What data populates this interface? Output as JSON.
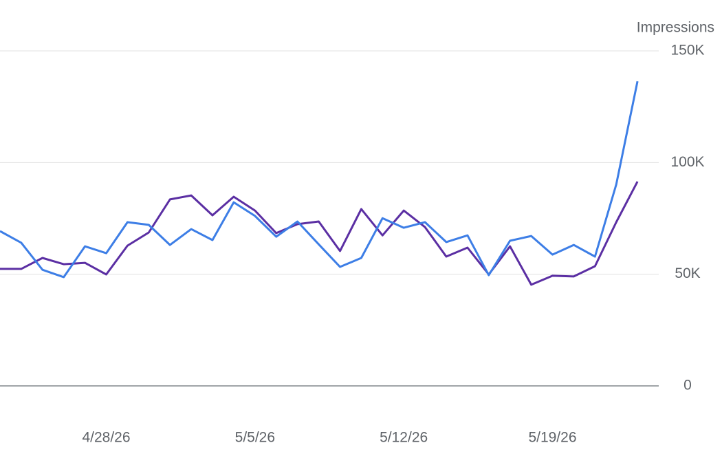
{
  "chart_data": {
    "type": "line",
    "y_axis_label": "Impressions",
    "x": [
      "4/23/26",
      "4/24/26",
      "4/25/26",
      "4/26/26",
      "4/27/26",
      "4/28/26",
      "4/29/26",
      "4/30/26",
      "5/1/26",
      "5/2/26",
      "5/3/26",
      "5/4/26",
      "5/5/26",
      "5/6/26",
      "5/7/26",
      "5/8/26",
      "5/9/26",
      "5/10/26",
      "5/11/26",
      "5/12/26",
      "5/13/26",
      "5/14/26",
      "5/15/26",
      "5/16/26",
      "5/17/26",
      "5/18/26",
      "5/19/26",
      "5/20/26",
      "5/21/26",
      "5/22/26",
      "5/23/26"
    ],
    "xlim": [
      "4/23/26",
      "5/24/26"
    ],
    "xticks": [
      "4/28/26",
      "5/5/26",
      "5/12/26",
      "5/19/26"
    ],
    "ylim": [
      0,
      150000
    ],
    "yticks": [
      0,
      {
        "value": 50000,
        "label": "50K"
      },
      {
        "value": 100000,
        "label": "100K"
      },
      {
        "value": 150000,
        "label": "150K"
      }
    ],
    "y_axis_side": "right",
    "grid": true,
    "series": [
      {
        "color": "#5b2fa3",
        "values": [
          52400,
          52400,
          57300,
          54500,
          55100,
          49900,
          62800,
          68700,
          83500,
          85300,
          76400,
          84700,
          78500,
          68400,
          72400,
          73600,
          60400,
          79200,
          67400,
          78500,
          71100,
          57900,
          61900,
          49900,
          62500,
          45300,
          49300,
          49000,
          53600,
          73300,
          91500
        ]
      },
      {
        "color": "#3d7ee6",
        "values": [
          69300,
          64100,
          52000,
          48700,
          62500,
          59400,
          73300,
          72100,
          63100,
          70200,
          65300,
          82200,
          76100,
          66800,
          73600,
          63400,
          53300,
          57300,
          75100,
          70800,
          73300,
          64400,
          67400,
          49600,
          65000,
          67100,
          58800,
          63100,
          57900,
          90200,
          136400
        ]
      }
    ]
  }
}
